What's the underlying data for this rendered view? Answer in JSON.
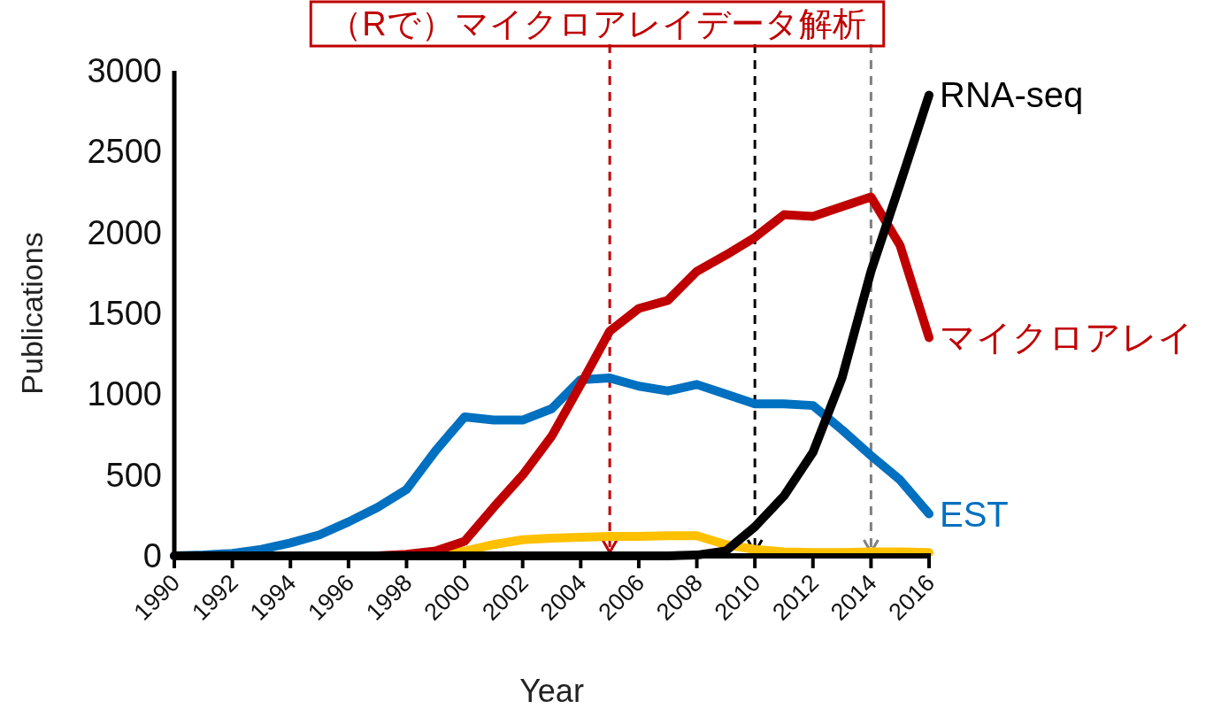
{
  "chart_data": {
    "type": "line",
    "xlabel": "Year",
    "ylabel": "Publications",
    "annotations": [
      "（Rで）マイクロアレイデータ解析"
    ],
    "x": [
      1990,
      1991,
      1992,
      1993,
      1994,
      1995,
      1996,
      1997,
      1998,
      1999,
      2000,
      2001,
      2002,
      2003,
      2004,
      2005,
      2006,
      2007,
      2008,
      2009,
      2010,
      2011,
      2012,
      2013,
      2014,
      2015,
      2016
    ],
    "xlim": [
      1990,
      2016
    ],
    "xticks": [
      1990,
      1992,
      1994,
      1996,
      1998,
      2000,
      2002,
      2004,
      2006,
      2008,
      2010,
      2012,
      2014,
      2016
    ],
    "ylim": [
      0,
      3000
    ],
    "yticks": [
      0,
      500,
      1000,
      1500,
      2000,
      2500,
      3000
    ],
    "grid": false,
    "legend": false,
    "line_style": "solid",
    "marker": "none",
    "series": [
      {
        "color": "#ffc000",
        "values": [
          null,
          null,
          null,
          null,
          null,
          null,
          null,
          null,
          0,
          0,
          30,
          70,
          100,
          110,
          115,
          120,
          120,
          125,
          125,
          70,
          40,
          25,
          20,
          20,
          25,
          25,
          20
        ]
      },
      {
        "name": "EST",
        "color": "#0070c0",
        "values": [
          0,
          5,
          15,
          40,
          80,
          130,
          210,
          300,
          410,
          650,
          860,
          840,
          840,
          910,
          1090,
          1100,
          1050,
          1020,
          1060,
          1000,
          940,
          940,
          930,
          780,
          620,
          470,
          260
        ]
      },
      {
        "name": "マイクロアレイ",
        "color": "#c00000",
        "values": [
          null,
          null,
          null,
          null,
          null,
          null,
          0,
          0,
          10,
          30,
          90,
          300,
          500,
          740,
          1060,
          1390,
          1530,
          1580,
          1760,
          1860,
          1970,
          2110,
          2100,
          2160,
          2220,
          1920,
          1350
        ]
      },
      {
        "name": "RNA-seq",
        "color": "#000000",
        "values": [
          0,
          0,
          0,
          0,
          0,
          0,
          0,
          0,
          0,
          0,
          0,
          0,
          0,
          0,
          0,
          0,
          0,
          0,
          5,
          30,
          180,
          370,
          640,
          1100,
          1760,
          2300,
          2850
        ]
      }
    ],
    "ref_lines": [
      {
        "axis": "x",
        "value": 2005,
        "color": "#c00000",
        "line_style": "dashed"
      },
      {
        "axis": "x",
        "value": 2010,
        "color": "#000000",
        "line_style": "dashed"
      },
      {
        "axis": "x",
        "value": 2014,
        "color": "#808080",
        "line_style": "dashed"
      }
    ]
  }
}
